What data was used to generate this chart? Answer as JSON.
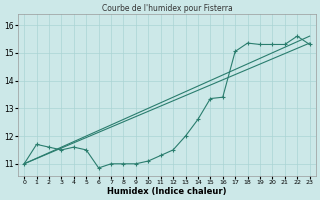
{
  "title": "Courbe de l'humidex pour Fisterra",
  "xlabel": "Humidex (Indice chaleur)",
  "xlim": [
    -0.5,
    23.5
  ],
  "ylim": [
    10.55,
    16.4
  ],
  "yticks": [
    11,
    12,
    13,
    14,
    15,
    16
  ],
  "xticks": [
    0,
    1,
    2,
    3,
    4,
    5,
    6,
    7,
    8,
    9,
    10,
    11,
    12,
    13,
    14,
    15,
    16,
    17,
    18,
    19,
    20,
    21,
    22,
    23
  ],
  "bg_color": "#cce8e8",
  "grid_color": "#aad4d4",
  "line_color": "#2a7d6e",
  "line1_x": [
    0,
    1,
    2,
    3,
    4,
    5,
    6,
    7,
    8,
    9,
    10,
    11,
    12,
    13,
    14,
    15,
    16,
    17,
    18,
    19,
    20,
    21,
    22,
    23
  ],
  "line1_y": [
    11.0,
    11.7,
    11.6,
    11.5,
    11.6,
    11.5,
    10.85,
    11.0,
    11.0,
    11.0,
    11.1,
    11.3,
    11.5,
    12.0,
    12.6,
    13.35,
    13.4,
    15.05,
    15.35,
    15.3,
    15.3,
    15.3,
    15.6,
    15.3
  ],
  "line2_y": [
    11.0,
    15.6
  ],
  "line2_x": [
    0,
    23
  ],
  "line3_y": [
    11.0,
    15.35
  ],
  "line3_x": [
    0,
    23
  ]
}
